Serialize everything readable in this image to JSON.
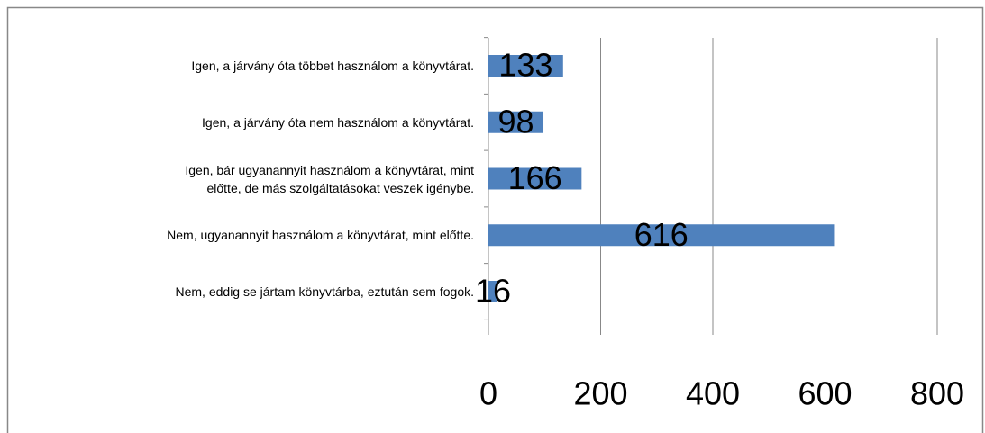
{
  "chart_data": {
    "type": "barh",
    "categories": [
      "Igen, a járvány óta többet használom a könyvtárat.",
      "Igen, a járvány óta nem használom a könyvtárat.",
      "Igen, bár ugyanannyit használom a könyvtárat, mint\nelőtte, de más szolgáltatásokat veszek igénybe.",
      "Nem, ugyanannyit használom a könyvtárat, mint előtte.",
      "Nem, eddig se jártam könyvtárba, eztután sem fogok."
    ],
    "values": [
      133,
      98,
      166,
      616,
      16
    ],
    "color": "#4f81bd",
    "xlim": [
      0,
      800
    ],
    "xticks": [
      0,
      200,
      400,
      600,
      800
    ],
    "grid": true
  }
}
